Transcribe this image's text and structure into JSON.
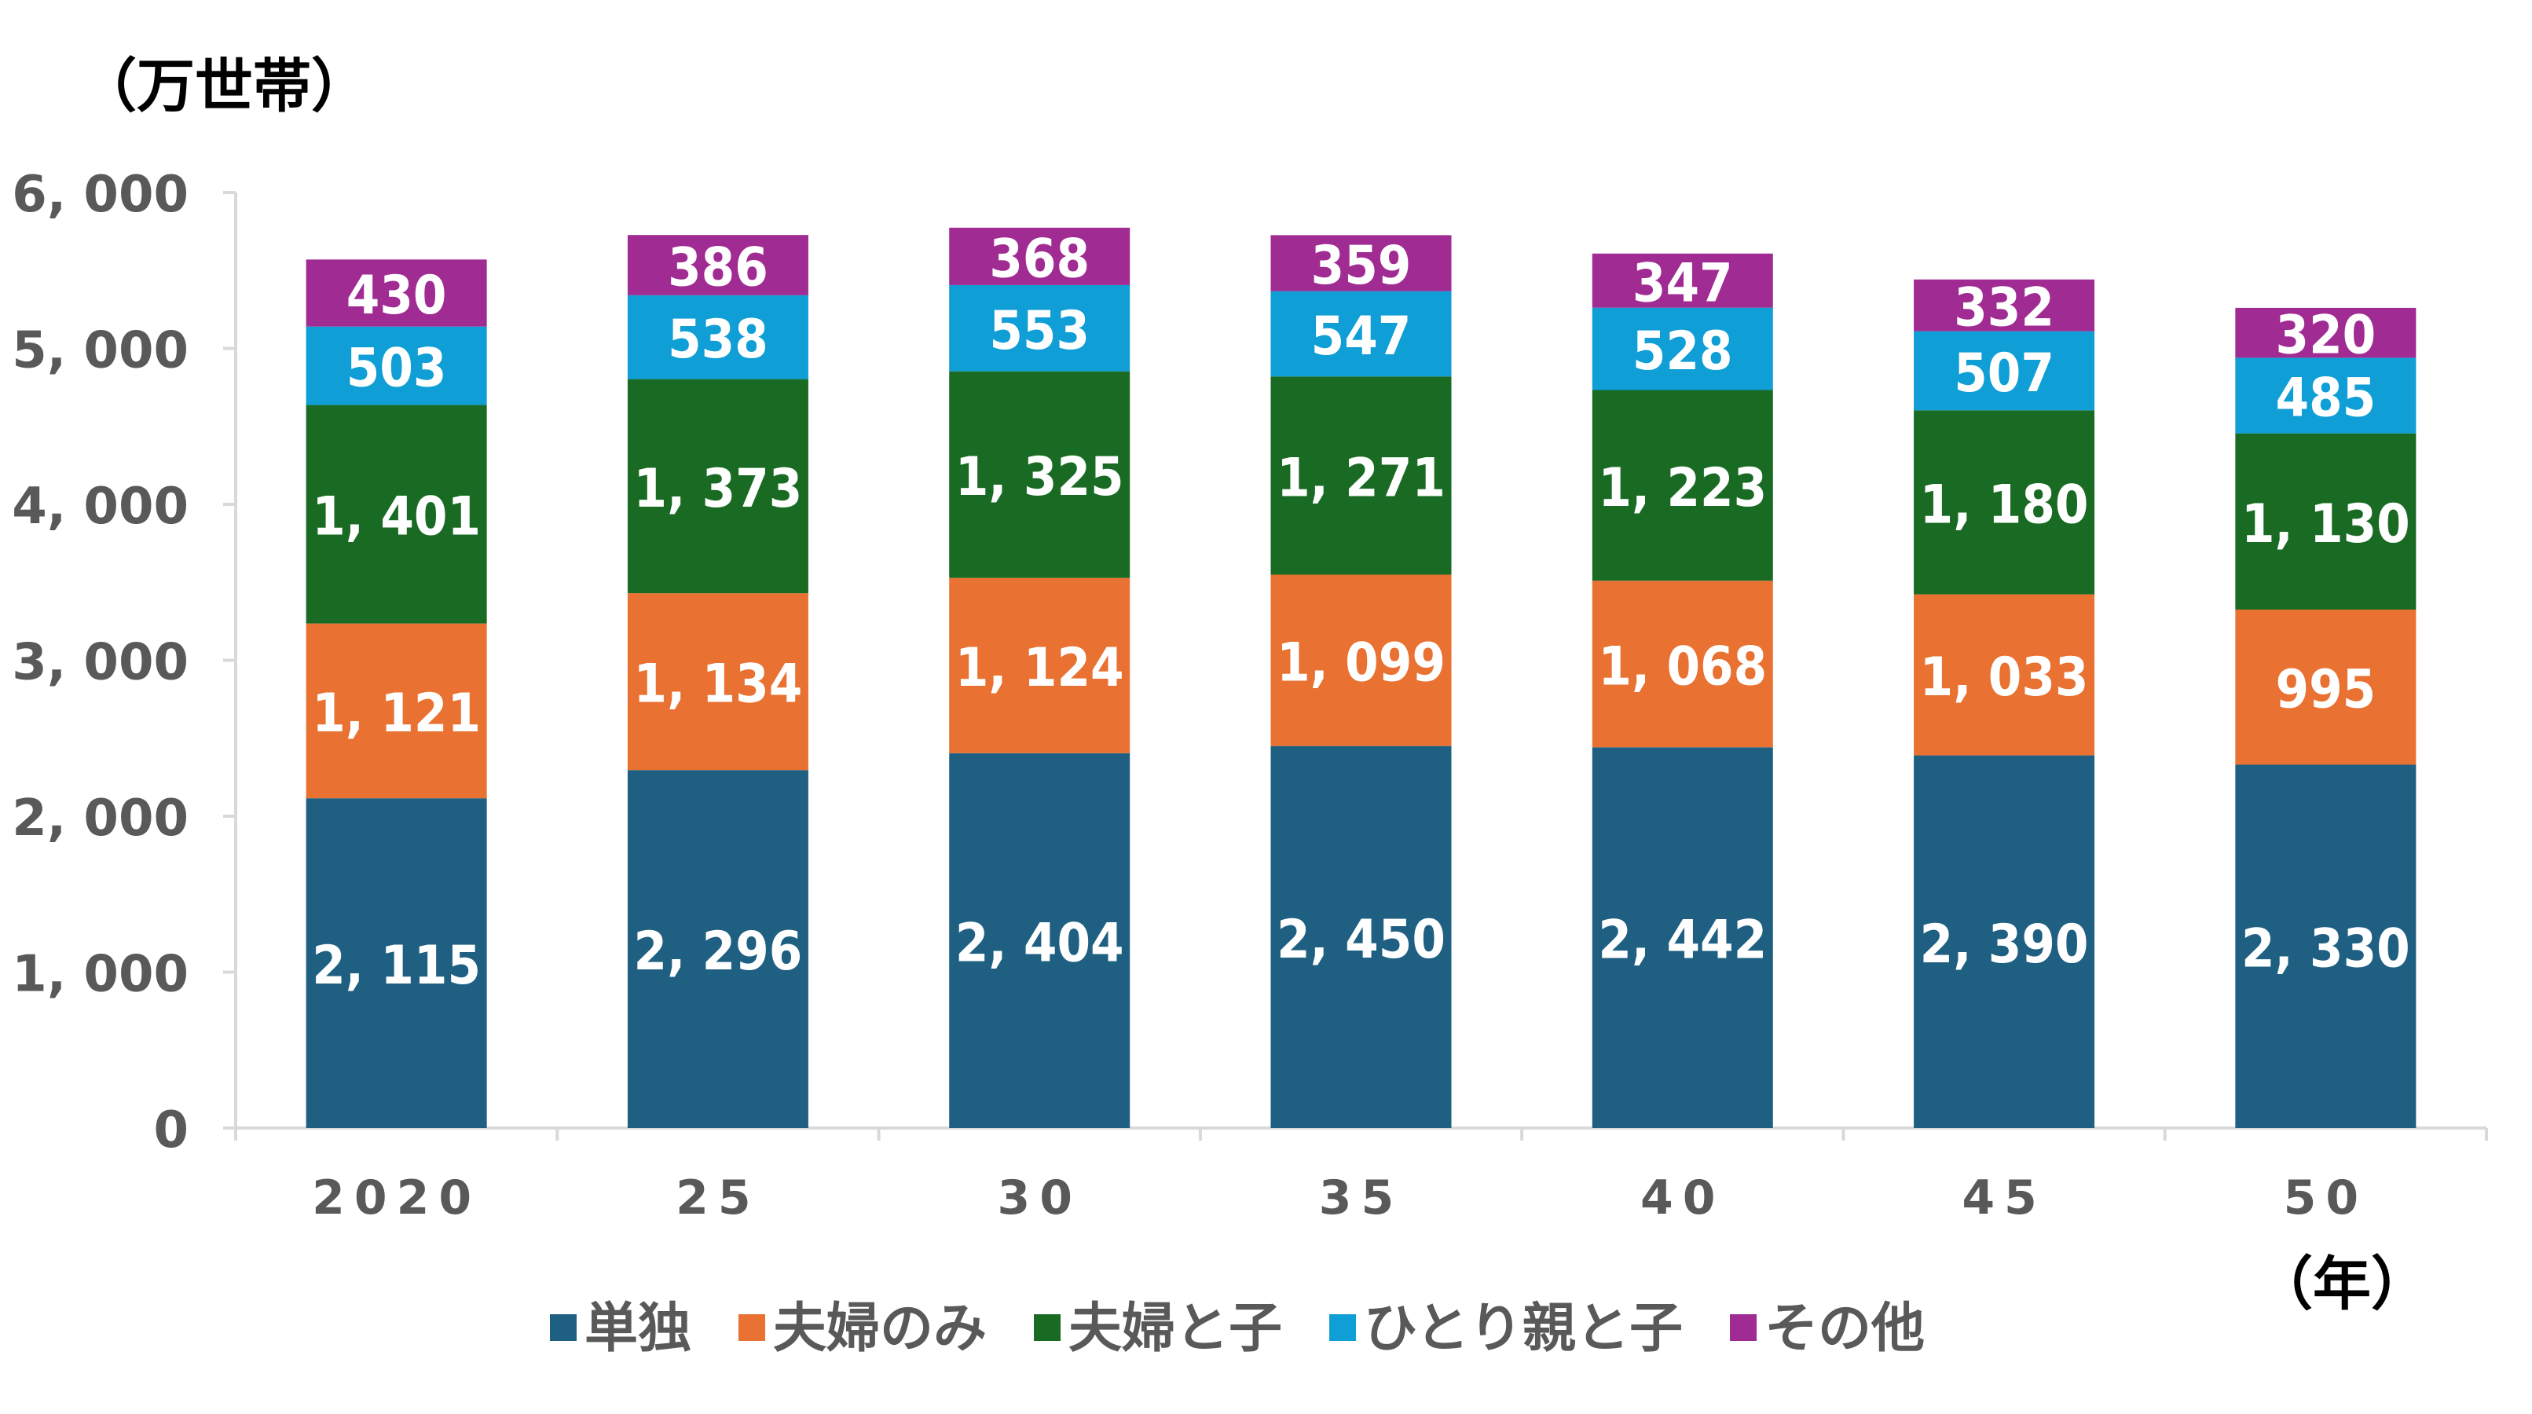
{
  "chart_data": {
    "type": "bar",
    "stacked": true,
    "ylabel": "（万世帯）",
    "xlabel": "（年）",
    "categories": [
      "2020",
      "25",
      "30",
      "35",
      "40",
      "45",
      "50"
    ],
    "ylim": [
      0,
      6000
    ],
    "yticks": [
      0,
      1000,
      2000,
      3000,
      4000,
      5000,
      6000
    ],
    "ytick_labels": [
      "0",
      "1, 000",
      "2, 000",
      "3, 000",
      "4, 000",
      "5, 000",
      "6, 000"
    ],
    "grid": false,
    "legend_position": "bottom",
    "series": [
      {
        "name": "単独",
        "color": "#1F6082",
        "values": [
          2115,
          2296,
          2404,
          2450,
          2442,
          2390,
          2330
        ],
        "labels": [
          "2, 115",
          "2, 296",
          "2, 404",
          "2, 450",
          "2, 442",
          "2, 390",
          "2, 330"
        ]
      },
      {
        "name": "夫婦のみ",
        "color": "#E97132",
        "values": [
          1121,
          1134,
          1124,
          1099,
          1068,
          1033,
          995
        ],
        "labels": [
          "1, 121",
          "1, 134",
          "1, 124",
          "1, 099",
          "1, 068",
          "1, 033",
          "995"
        ]
      },
      {
        "name": "夫婦と子",
        "color": "#196B24",
        "values": [
          1401,
          1373,
          1325,
          1271,
          1223,
          1180,
          1130
        ],
        "labels": [
          "1, 401",
          "1, 373",
          "1, 325",
          "1, 271",
          "1, 223",
          "1, 180",
          "1, 130"
        ]
      },
      {
        "name": "ひとり親と子",
        "color": "#0F9ED5",
        "values": [
          503,
          538,
          553,
          547,
          528,
          507,
          485
        ],
        "labels": [
          "503",
          "538",
          "553",
          "547",
          "528",
          "507",
          "485"
        ]
      },
      {
        "name": "その他",
        "color": "#A02B93",
        "values": [
          430,
          386,
          368,
          359,
          347,
          332,
          320
        ],
        "labels": [
          "430",
          "386",
          "368",
          "359",
          "347",
          "332",
          "320"
        ]
      }
    ]
  }
}
